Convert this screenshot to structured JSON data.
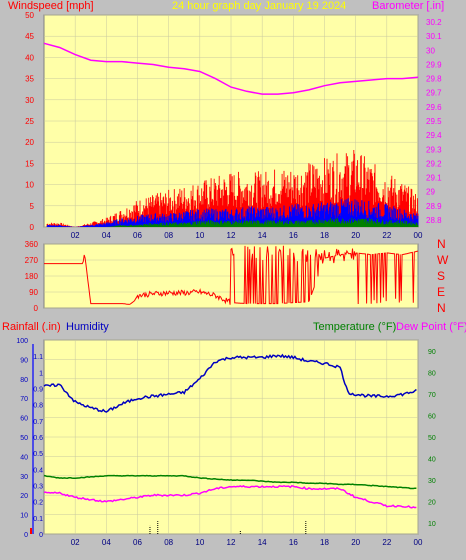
{
  "header": {
    "left_label": "Windspeed [mph]",
    "center_label": "24 hour graph day   January 19 2024",
    "right_label": "Barometer [.in]"
  },
  "direction_labels": [
    "N",
    "W",
    "S",
    "E",
    "N"
  ],
  "bottom_header": {
    "rain_label": "Rainfall (.in)",
    "humidity_label": "Humidity",
    "temp_label": "Temperature (°F)",
    "dew_label": "Dew Point (°F)"
  },
  "colors": {
    "plot_bg": "#ffffa8",
    "wind_gust": "#ff0000",
    "wind_avg": "#0000ff",
    "wind_min": "#008000",
    "barometer": "#ff00ff",
    "direction": "#ff0000",
    "humidity": "#0000c0",
    "temperature": "#008000",
    "dew_point": "#ff00ff",
    "rain": "#000000",
    "title": "#ffff00"
  },
  "chart_data": [
    {
      "type": "line",
      "name": "wind-barometer",
      "x_ticks": [
        "02",
        "04",
        "06",
        "08",
        "10",
        "12",
        "14",
        "16",
        "18",
        "20",
        "22",
        "00"
      ],
      "xlim": [
        0,
        24
      ],
      "y_left_ticks": [
        0,
        5,
        10,
        15,
        20,
        25,
        30,
        35,
        40,
        45,
        50
      ],
      "ylim_left": [
        0,
        50
      ],
      "y_right_ticks": [
        28.8,
        28.9,
        29,
        29.1,
        29.2,
        29.3,
        29.4,
        29.5,
        29.6,
        29.7,
        29.8,
        29.9,
        30,
        30.1,
        30.2
      ],
      "ylim_right": [
        28.75,
        30.25
      ],
      "series": [
        {
          "axis": "right",
          "x": [
            0,
            1,
            2,
            3,
            4,
            5,
            6,
            7,
            8,
            9,
            10,
            11,
            12,
            13,
            14,
            15,
            16,
            17,
            18,
            19,
            20,
            21,
            22,
            23,
            24
          ],
          "values": [
            30.05,
            30.02,
            29.97,
            29.93,
            29.92,
            29.92,
            29.91,
            29.9,
            29.88,
            29.87,
            29.85,
            29.8,
            29.74,
            29.71,
            29.69,
            29.69,
            29.7,
            29.72,
            29.75,
            29.77,
            29.78,
            29.79,
            29.8,
            29.8,
            29.81
          ]
        },
        {
          "axis": "left",
          "x": [
            0,
            1,
            2,
            3,
            4,
            5,
            6,
            7,
            8,
            9,
            10,
            11,
            12,
            13,
            14,
            15,
            16,
            17,
            18,
            19,
            20,
            21,
            22,
            23,
            24
          ],
          "values": [
            1,
            1,
            0,
            1,
            2,
            4,
            6,
            7,
            8,
            9,
            10,
            11,
            12,
            12,
            12,
            13,
            13,
            14,
            15,
            16,
            17,
            14,
            12,
            10,
            7
          ]
        },
        {
          "axis": "left",
          "x": [
            0,
            1,
            2,
            3,
            4,
            5,
            6,
            7,
            8,
            9,
            10,
            11,
            12,
            13,
            14,
            15,
            16,
            17,
            18,
            19,
            20,
            21,
            22,
            23,
            24
          ],
          "values": [
            0.5,
            0.5,
            0,
            0.5,
            1,
            2,
            2.5,
            3,
            3,
            3.5,
            4,
            4,
            4,
            4.5,
            4.5,
            4.5,
            5,
            5,
            5.5,
            6,
            6.5,
            5.5,
            5,
            4,
            3
          ]
        },
        {
          "axis": "left",
          "x": [
            0,
            1,
            2,
            3,
            4,
            5,
            6,
            7,
            8,
            9,
            10,
            11,
            12,
            13,
            14,
            15,
            16,
            17,
            18,
            19,
            20,
            21,
            22,
            23,
            24
          ],
          "values": [
            0,
            0,
            0,
            0,
            0,
            0.5,
            0.5,
            1,
            1,
            1,
            1.5,
            1.5,
            1.5,
            1.5,
            1.5,
            1.5,
            1.5,
            1.5,
            2,
            2,
            2,
            2,
            1.5,
            1.5,
            1
          ]
        }
      ]
    },
    {
      "type": "line",
      "name": "wind-direction",
      "xlim": [
        0,
        24
      ],
      "y_ticks": [
        0,
        90,
        180,
        270,
        360
      ],
      "ylim": [
        0,
        360
      ],
      "series": [
        {
          "x": [
            0,
            2.5,
            2.6,
            3,
            3.3,
            5,
            5.5,
            5.8,
            6,
            7,
            8,
            9,
            10,
            11,
            12,
            13,
            14,
            15,
            16,
            17,
            18,
            19,
            20,
            21,
            22,
            23,
            24
          ],
          "values": [
            250,
            250,
            310,
            25,
            25,
            25,
            20,
            40,
            70,
            80,
            85,
            85,
            90,
            70,
            30,
            25,
            25,
            25,
            30,
            35,
            280,
            300,
            310,
            300,
            310,
            300,
            320
          ]
        }
      ]
    },
    {
      "type": "line",
      "name": "temp-humidity-rain",
      "x_ticks": [
        "02",
        "04",
        "06",
        "08",
        "10",
        "12",
        "14",
        "16",
        "18",
        "20",
        "22",
        "00"
      ],
      "xlim": [
        0,
        24
      ],
      "y_rain_ticks": [
        0,
        0.1,
        0.2,
        0.3,
        0.4,
        0.5,
        0.6,
        0.7,
        0.8,
        0.9,
        1,
        1.1
      ],
      "ylim_rain": [
        0,
        1.2
      ],
      "y_humidity_ticks": [
        0,
        10,
        20,
        30,
        40,
        50,
        60,
        70,
        80,
        90,
        100
      ],
      "ylim_humidity": [
        0,
        100
      ],
      "y_temp_ticks": [
        10,
        20,
        30,
        40,
        50,
        60,
        70,
        80,
        90
      ],
      "ylim_temp": [
        5,
        95
      ],
      "series": [
        {
          "axis": "humidity",
          "x": [
            0,
            1,
            2,
            3,
            4,
            5,
            6,
            7,
            8,
            9,
            10,
            11,
            12,
            13,
            14,
            15,
            16,
            17,
            18,
            19,
            19.5,
            20,
            21,
            22,
            23,
            24
          ],
          "values": [
            76,
            77,
            68,
            65,
            63,
            67,
            70,
            71,
            72,
            73,
            80,
            89,
            91,
            91,
            91,
            92,
            91,
            89,
            88,
            86,
            73,
            72,
            71,
            71,
            72,
            74
          ]
        },
        {
          "axis": "temp",
          "x": [
            0,
            1,
            2,
            3,
            4,
            5,
            6,
            7,
            8,
            9,
            10,
            11,
            12,
            13,
            14,
            15,
            16,
            17,
            18,
            19,
            20,
            21,
            22,
            23,
            24
          ],
          "values": [
            32,
            31,
            31,
            31.5,
            32,
            32,
            32,
            32,
            32,
            32,
            31,
            30.5,
            30,
            30,
            29.5,
            29,
            29,
            28.5,
            28.5,
            28,
            28,
            27.5,
            27,
            26.5,
            26
          ]
        },
        {
          "axis": "temp",
          "x": [
            0,
            1,
            2,
            3,
            4,
            5,
            6,
            7,
            8,
            9,
            10,
            11,
            12,
            13,
            14,
            15,
            16,
            17,
            18,
            19,
            20,
            21,
            22,
            23,
            24
          ],
          "values": [
            24,
            24,
            22,
            21,
            20,
            21,
            22,
            23,
            23,
            23,
            24,
            26,
            27,
            27,
            27,
            27,
            27,
            26,
            26,
            26,
            22,
            20,
            18,
            18,
            17
          ]
        },
        {
          "axis": "rain",
          "x": [
            6.8,
            7.3,
            12.6,
            16.8
          ],
          "values": [
            0.05,
            0.08,
            0.02,
            0.08
          ]
        }
      ]
    }
  ]
}
